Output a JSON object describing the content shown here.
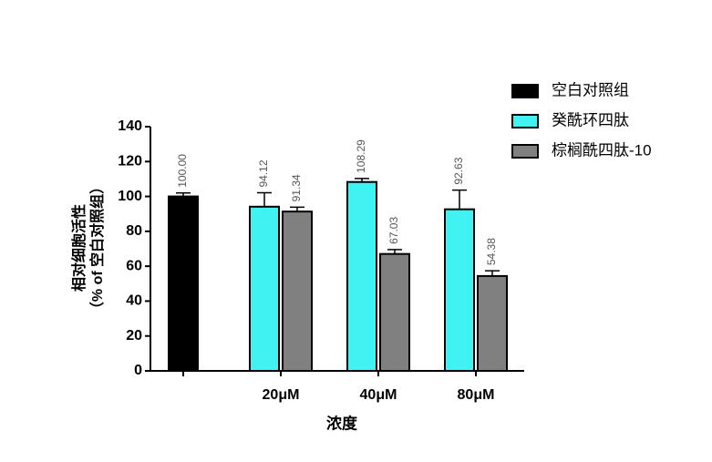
{
  "chart_data": {
    "type": "bar",
    "categories": [
      null,
      "20μM",
      "40μM",
      "80μM"
    ],
    "series": [
      {
        "name": "空白对照组",
        "color": "#000000",
        "values": [
          100,
          null,
          null,
          null
        ],
        "value_labels": [
          "100.00",
          null,
          null,
          null
        ],
        "errors": [
          2,
          null,
          null,
          null
        ]
      },
      {
        "name": "癸酰环四肽",
        "color": "#40f2f2",
        "values": [
          null,
          94.12,
          108.29,
          92.63
        ],
        "value_labels": [
          null,
          "94.12",
          "108.29",
          "92.63"
        ],
        "errors": [
          null,
          8,
          2,
          11
        ]
      },
      {
        "name": "棕榈酰四肽-10",
        "color": "#808080",
        "values": [
          null,
          91.34,
          67.03,
          54.38
        ],
        "value_labels": [
          null,
          "91.34",
          "67.03",
          "54.38"
        ],
        "errors": [
          null,
          2.5,
          2.5,
          3
        ]
      }
    ],
    "xlabel": "浓度",
    "ylabel": [
      "相对细胞活性",
      "（% of 空白对照组）"
    ],
    "ylim": [
      0,
      140
    ],
    "yticks": [
      0,
      20,
      40,
      60,
      80,
      100,
      120,
      140
    ],
    "legend": "upper-right"
  }
}
